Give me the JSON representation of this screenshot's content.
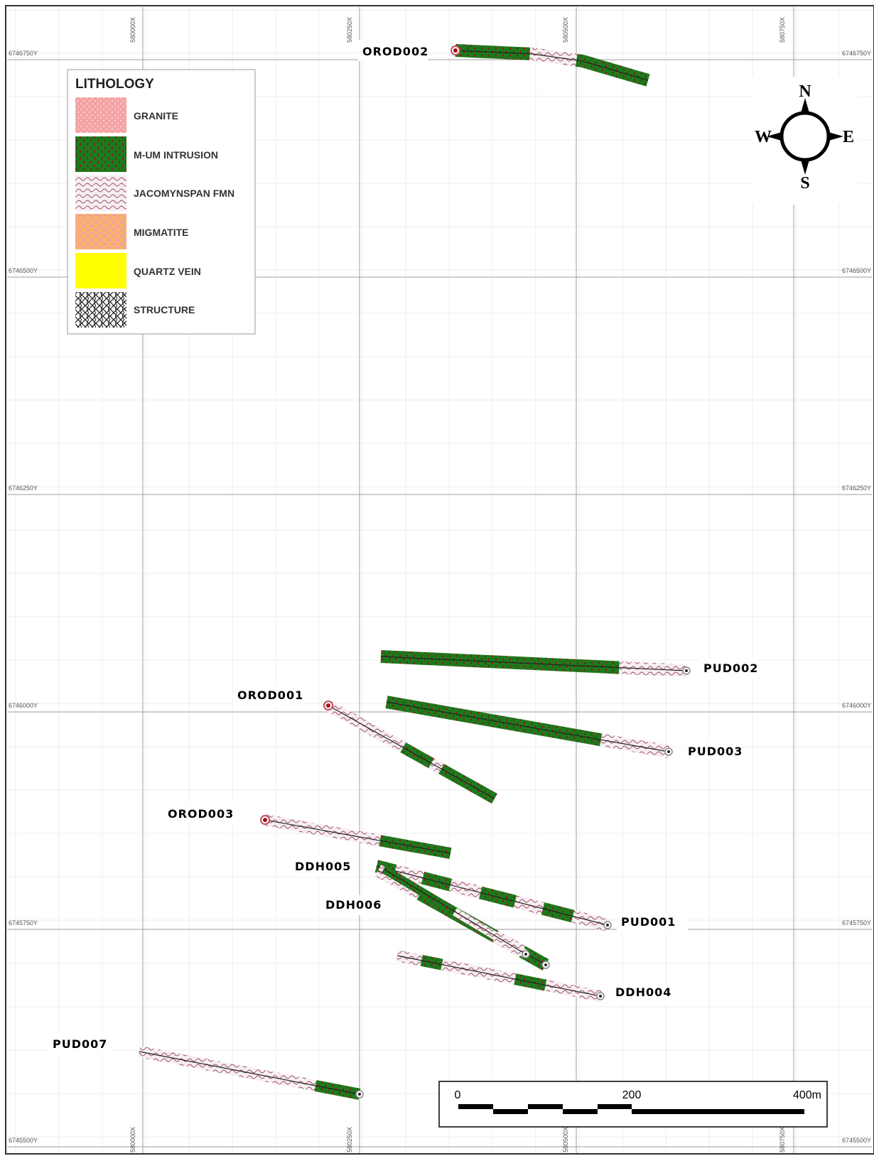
{
  "map": {
    "x_grid_labels": [
      "580000X",
      "580250X",
      "580500X",
      "580750X"
    ],
    "y_grid_labels": [
      "6746750Y",
      "6746500Y",
      "6746250Y",
      "6746000Y",
      "6745750Y",
      "6745500Y"
    ]
  },
  "legend": {
    "title": "LITHOLOGY",
    "items": [
      {
        "label": "GRANITE",
        "color": "#f4a3a3"
      },
      {
        "label": "M-UM INTRUSION",
        "color": "#1c7a1c"
      },
      {
        "label": "JACOMYNSPAN FMN",
        "color": "#f4e8ee"
      },
      {
        "label": "MIGMATITE",
        "color": "#f7b26e"
      },
      {
        "label": "QUARTZ VEIN",
        "color": "#ffff00"
      },
      {
        "label": "STRUCTURE",
        "color": "#333333"
      }
    ]
  },
  "compass": {
    "n": "N",
    "s": "S",
    "e": "E",
    "w": "W"
  },
  "scale_bar": {
    "labels": [
      "0",
      "200",
      "400m"
    ]
  },
  "drill_holes": [
    {
      "id": "OROD002"
    },
    {
      "id": "PUD002"
    },
    {
      "id": "OROD001"
    },
    {
      "id": "PUD003"
    },
    {
      "id": "OROD003"
    },
    {
      "id": "DDH005"
    },
    {
      "id": "DDH006"
    },
    {
      "id": "PUD001"
    },
    {
      "id": "DDH004"
    },
    {
      "id": "PUD007"
    }
  ]
}
